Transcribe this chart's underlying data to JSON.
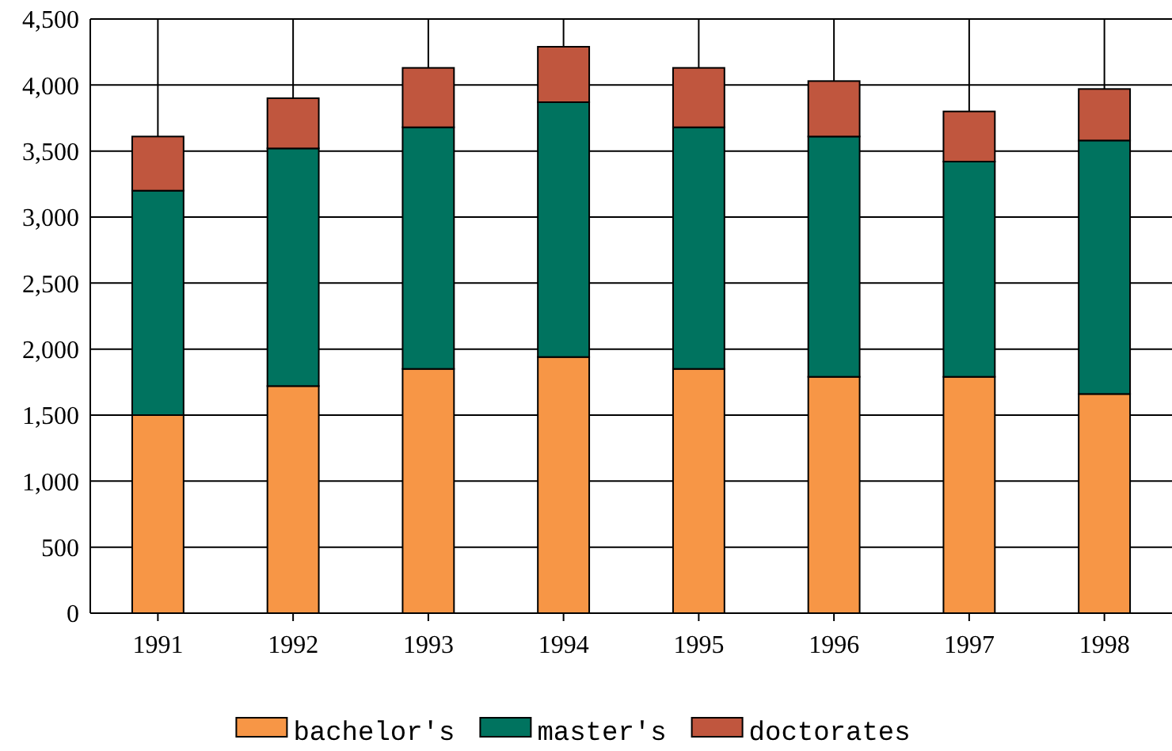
{
  "chart_data": {
    "type": "bar",
    "stacked": true,
    "categories": [
      "1991",
      "1992",
      "1993",
      "1994",
      "1995",
      "1996",
      "1997",
      "1998"
    ],
    "series": [
      {
        "name": "bachelor's",
        "color": "#f79646",
        "values": [
          1500,
          1720,
          1850,
          1940,
          1850,
          1790,
          1790,
          1660
        ]
      },
      {
        "name": "master's",
        "color": "#00735f",
        "values": [
          1700,
          1800,
          1830,
          1930,
          1830,
          1820,
          1630,
          1920
        ]
      },
      {
        "name": "doctorates",
        "color": "#c0563e",
        "values": [
          410,
          380,
          450,
          420,
          450,
          420,
          380,
          390
        ]
      }
    ],
    "ylim": [
      0,
      4500
    ],
    "yticks": [
      {
        "value": 0,
        "label": "0"
      },
      {
        "value": 500,
        "label": "500"
      },
      {
        "value": 1000,
        "label": "1,000"
      },
      {
        "value": 1500,
        "label": "1,500"
      },
      {
        "value": 2000,
        "label": "2,000"
      },
      {
        "value": 2500,
        "label": "2,500"
      },
      {
        "value": 3000,
        "label": "3,000"
      },
      {
        "value": 3500,
        "label": "3,500"
      },
      {
        "value": 4000,
        "label": "4,000"
      },
      {
        "value": 4500,
        "label": "4,500"
      }
    ],
    "grid": true,
    "legend": "bottom"
  }
}
